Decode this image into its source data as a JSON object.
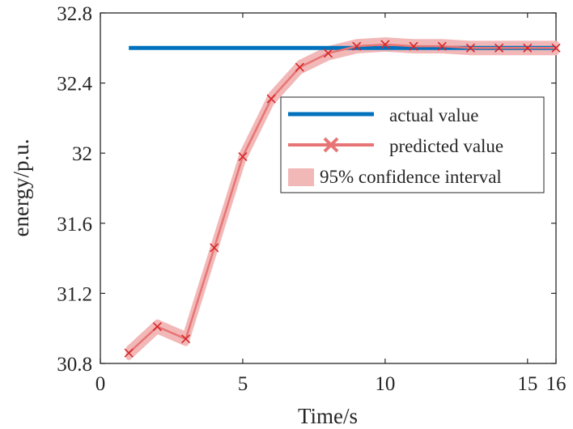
{
  "chart_data": {
    "type": "line",
    "title": "",
    "xlabel": "Time/s",
    "ylabel": "energy/p.u.",
    "xlim": [
      0,
      16
    ],
    "ylim": [
      30.8,
      32.8
    ],
    "xticks": [
      0,
      5,
      10,
      15,
      16
    ],
    "yticks": [
      30.8,
      31.2,
      31.6,
      32,
      32.4,
      32.8
    ],
    "xtick_labels": [
      "0",
      "5",
      "10",
      "15",
      "16"
    ],
    "ytick_labels": [
      "30.8",
      "31.2",
      "31.6",
      "32",
      "32.4",
      "32.8"
    ],
    "grid": false,
    "legend_position": "middle-right",
    "series": [
      {
        "name": "actual value",
        "color": "#0072BD",
        "x": [
          1,
          16
        ],
        "y": [
          32.6,
          32.6
        ]
      },
      {
        "name": "predicted value",
        "color": "#E87575",
        "marker": "x",
        "marker_color": "#D62728",
        "x": [
          1,
          2,
          3,
          4,
          5,
          6,
          7,
          8,
          9,
          10,
          11,
          12,
          13,
          14,
          15,
          16
        ],
        "y": [
          30.86,
          31.01,
          30.94,
          31.46,
          31.98,
          32.31,
          32.49,
          32.57,
          32.61,
          32.62,
          32.61,
          32.61,
          32.6,
          32.6,
          32.6,
          32.6
        ]
      },
      {
        "name": "95% confidence interval",
        "color": "#F2B8B8",
        "type": "band",
        "halfwidth": 0.025
      }
    ]
  }
}
